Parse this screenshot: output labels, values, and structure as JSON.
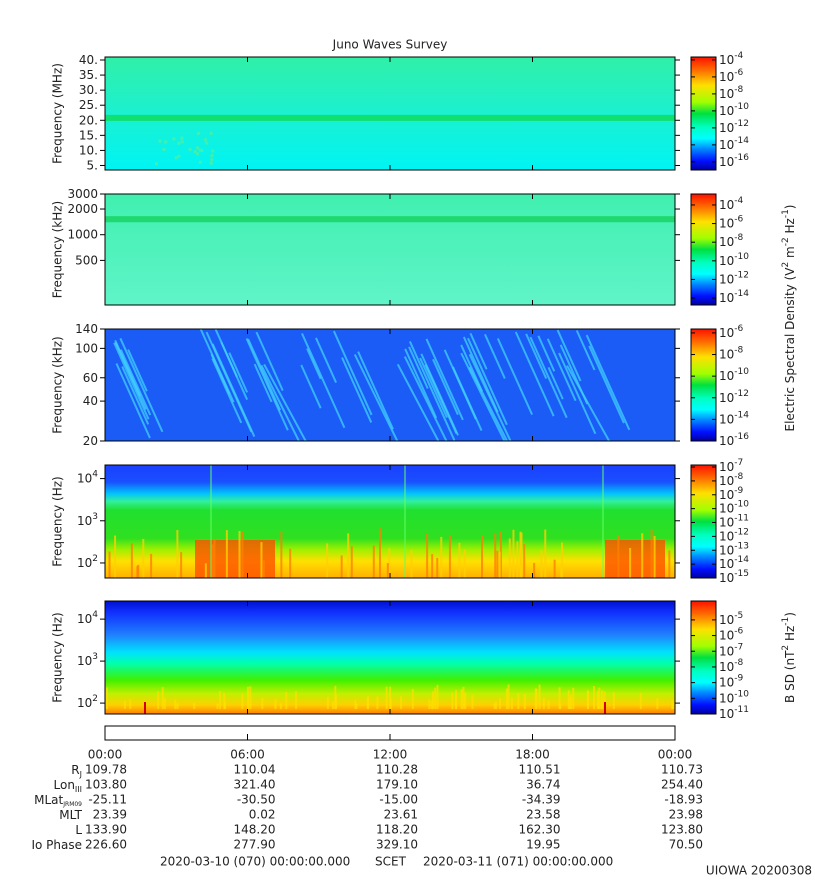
{
  "title": "Juno Waves Survey",
  "chart_data": [
    {
      "type": "spectrogram",
      "ylabel": "Frequency (MHz)",
      "yscale": "linear",
      "ylim": [
        3.5,
        41
      ],
      "yticks": [
        {
          "value": 5,
          "label": "5."
        },
        {
          "value": 10,
          "label": "10."
        },
        {
          "value": 15,
          "label": "15."
        },
        {
          "value": 20,
          "label": "20."
        },
        {
          "value": 25,
          "label": "25."
        },
        {
          "value": 30,
          "label": "30."
        },
        {
          "value": 35,
          "label": "35."
        },
        {
          "value": 40,
          "label": "40."
        }
      ],
      "zscale": "log",
      "zlim": [
        1.1e-17,
        0.00022
      ],
      "zticks": [
        {
          "value": 0.0001,
          "label": "10",
          "exponent": "-4"
        },
        {
          "value": 1e-06,
          "label": "10",
          "exponent": "-6"
        },
        {
          "value": 1e-08,
          "label": "10",
          "exponent": "-8"
        },
        {
          "value": 1e-10,
          "label": "10",
          "exponent": "-10"
        },
        {
          "value": 1e-12,
          "label": "10",
          "exponent": "-12"
        },
        {
          "value": 1e-14,
          "label": "10",
          "exponent": "-14"
        },
        {
          "value": 1e-16,
          "label": "10",
          "exponent": "-16"
        }
      ]
    },
    {
      "type": "spectrogram",
      "ylabel": "Frequency (kHz)",
      "yscale": "log",
      "ylim": [
        150,
        3000
      ],
      "yticks": [
        500,
        1000,
        2000,
        3000
      ],
      "zscale": "log",
      "zlim": [
        1.8e-15,
        0.0015
      ],
      "zticks": [
        {
          "value": 0.0001,
          "label": "10",
          "exponent": "-4"
        },
        {
          "value": 1e-06,
          "label": "10",
          "exponent": "-6"
        },
        {
          "value": 1e-08,
          "label": "10",
          "exponent": "-8"
        },
        {
          "value": 1e-10,
          "label": "10",
          "exponent": "-10"
        },
        {
          "value": 1e-12,
          "label": "10",
          "exponent": "-12"
        },
        {
          "value": 1e-14,
          "label": "10",
          "exponent": "-14"
        }
      ]
    },
    {
      "type": "spectrogram",
      "ylabel": "Frequency (kHz)",
      "yscale": "log",
      "ylim": [
        20,
        140
      ],
      "yticks": [
        20,
        40,
        60,
        100,
        140
      ],
      "zscale": "log",
      "zlim": [
        1e-16,
        2.3e-06
      ],
      "zticks": [
        {
          "value": 1e-06,
          "label": "10",
          "exponent": "-6"
        },
        {
          "value": 1e-08,
          "label": "10",
          "exponent": "-8"
        },
        {
          "value": 1e-10,
          "label": "10",
          "exponent": "-10"
        },
        {
          "value": 1e-12,
          "label": "10",
          "exponent": "-12"
        },
        {
          "value": 1e-14,
          "label": "10",
          "exponent": "-14"
        },
        {
          "value": 1e-16,
          "label": "10",
          "exponent": "-16"
        }
      ]
    },
    {
      "type": "spectrogram",
      "ylabel": "Frequency (Hz)",
      "yscale": "log",
      "ylim": [
        44,
        21000
      ],
      "yticks": [
        {
          "value": 100,
          "label": "10",
          "exponent": "2"
        },
        {
          "value": 1000,
          "label": "10",
          "exponent": "3"
        },
        {
          "value": 10000,
          "label": "10",
          "exponent": "4"
        }
      ],
      "zscale": "log",
      "zlim": [
        1e-15,
        1.4e-07
      ],
      "zticks": [
        {
          "value": 1e-07,
          "label": "10",
          "exponent": "-7"
        },
        {
          "value": 1e-08,
          "label": "10",
          "exponent": "-8"
        },
        {
          "value": 1e-09,
          "label": "10",
          "exponent": "-9"
        },
        {
          "value": 1e-10,
          "label": "10",
          "exponent": "-10"
        },
        {
          "value": 1e-11,
          "label": "10",
          "exponent": "-11"
        },
        {
          "value": 1e-12,
          "label": "10",
          "exponent": "-12"
        },
        {
          "value": 1e-13,
          "label": "10",
          "exponent": "-13"
        },
        {
          "value": 1e-14,
          "label": "10",
          "exponent": "-14"
        },
        {
          "value": 1e-15,
          "label": "10",
          "exponent": "-15"
        }
      ]
    },
    {
      "type": "spectrogram",
      "ylabel": "Frequency (Hz)",
      "yscale": "log",
      "ylim": [
        55,
        27000
      ],
      "yticks": [
        {
          "value": 100,
          "label": "10",
          "exponent": "2"
        },
        {
          "value": 1000,
          "label": "10",
          "exponent": "3"
        },
        {
          "value": 10000,
          "label": "10",
          "exponent": "4"
        }
      ],
      "zscale": "log",
      "zlim": [
        1e-11,
        0.00016
      ],
      "zticks": [
        {
          "value": 1e-05,
          "label": "10",
          "exponent": "-5"
        },
        {
          "value": 1e-06,
          "label": "10",
          "exponent": "-6"
        },
        {
          "value": 1e-07,
          "label": "10",
          "exponent": "-7"
        },
        {
          "value": 1e-08,
          "label": "10",
          "exponent": "-8"
        },
        {
          "value": 1e-09,
          "label": "10",
          "exponent": "-9"
        },
        {
          "value": 1e-10,
          "label": "10",
          "exponent": "-10"
        },
        {
          "value": 1e-11,
          "label": "10",
          "exponent": "-11"
        }
      ],
      "zlabel": [
        "B SD (nT",
        "2",
        " Hz",
        "-1",
        ")"
      ]
    }
  ],
  "electric_label": [
    "Electric Spectral Density (V",
    "2",
    " m",
    "-2",
    " Hz",
    "-1",
    ")"
  ],
  "time_axis": {
    "xlim": [
      0,
      24
    ],
    "xticks": [
      {
        "value": 0,
        "label": "00:00"
      },
      {
        "value": 6,
        "label": "06:00"
      },
      {
        "value": 12,
        "label": "12:00"
      },
      {
        "value": 18,
        "label": "18:00"
      },
      {
        "value": 24,
        "label": "00:00"
      }
    ]
  },
  "ephemeris": [
    {
      "label": "R",
      "sub": "J",
      "values": [
        "109.78",
        "110.04",
        "110.28",
        "110.51",
        "110.73"
      ]
    },
    {
      "label": "Lon",
      "sub": "III",
      "values": [
        "103.80",
        "321.40",
        "179.10",
        "36.74",
        "254.40"
      ]
    },
    {
      "label": "MLat",
      "sub": "JRM09",
      "values": [
        "-25.11",
        "-30.50",
        "-15.00",
        "-34.39",
        "-18.93"
      ]
    },
    {
      "label": "MLT",
      "values": [
        "23.39",
        "0.02",
        "23.61",
        "23.58",
        "23.98"
      ]
    },
    {
      "label": "L",
      "values": [
        "133.90",
        "148.20",
        "118.20",
        "162.30",
        "123.80"
      ]
    },
    {
      "label": "Io Phase",
      "values": [
        "226.60",
        "277.90",
        "329.10",
        "19.95",
        "70.50"
      ]
    }
  ],
  "footer": {
    "start": "2020-03-10 (070) 00:00:00.000",
    "label": "SCET",
    "end": "2020-03-11 (071) 00:00:00.000"
  },
  "stamp": "UIOWA 20200308"
}
